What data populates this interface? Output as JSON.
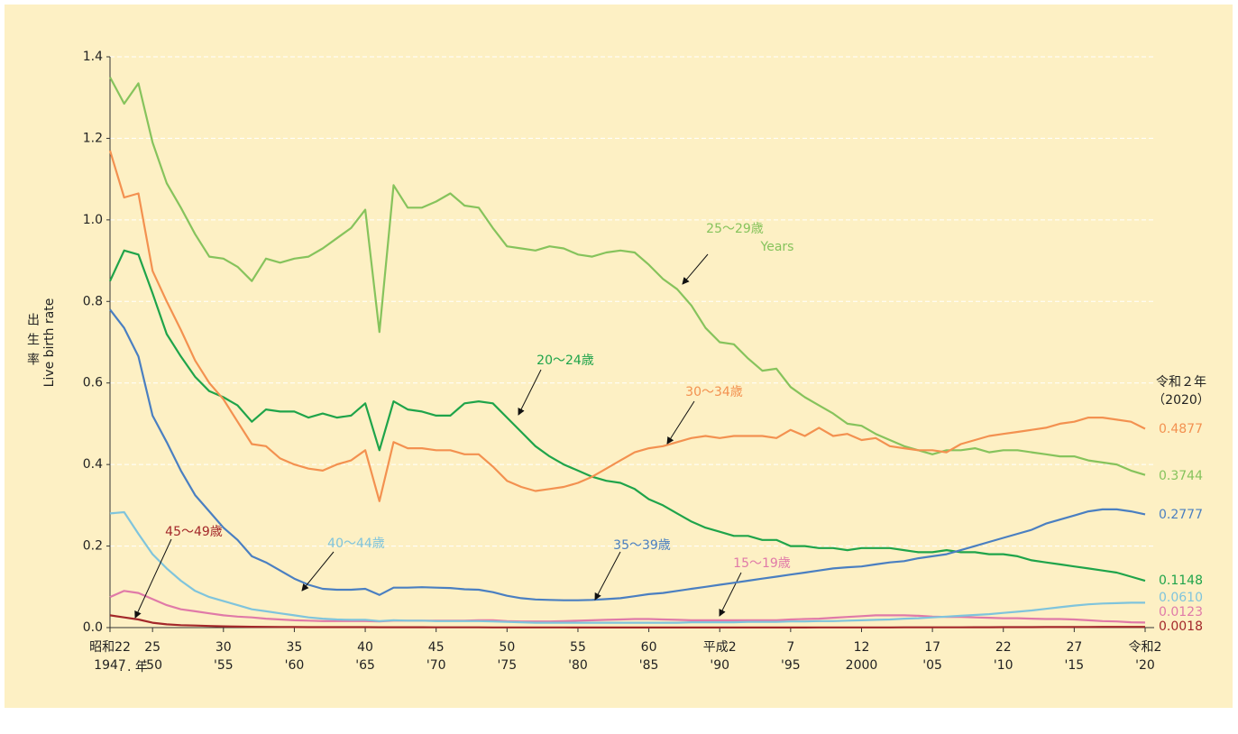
{
  "chart_data": {
    "type": "line",
    "y_label": "出生率",
    "y_label_en": "Live birth rate",
    "x_unit": ". . 年",
    "end_header": [
      "令和２年",
      "（2020）"
    ],
    "xlim": [
      1947,
      2020
    ],
    "ylim": [
      0,
      1.4
    ],
    "yticks": [
      {
        "value": 0,
        "label": "0.0"
      },
      0.2,
      0.4,
      0.6,
      0.8,
      {
        "value": 1,
        "label": "1.0"
      },
      1.2,
      1.4
    ],
    "xticks": [
      {
        "value": 1947,
        "label": "昭和22"
      },
      {
        "value": 1950,
        "label": "25"
      },
      {
        "value": 1955,
        "label": "30"
      },
      {
        "value": 1960,
        "label": "35"
      },
      {
        "value": 1965,
        "label": "40"
      },
      {
        "value": 1970,
        "label": "45"
      },
      {
        "value": 1975,
        "label": "50"
      },
      {
        "value": 1980,
        "label": "55"
      },
      {
        "value": 1985,
        "label": "60"
      },
      {
        "value": 1990,
        "label": "平成2"
      },
      {
        "value": 1995,
        "label": "7"
      },
      {
        "value": 2000,
        "label": "12"
      },
      {
        "value": 2005,
        "label": "17"
      },
      {
        "value": 2010,
        "label": "22"
      },
      {
        "value": 2015,
        "label": "27"
      },
      {
        "value": 2020,
        "label": "令和2"
      }
    ],
    "xticks2": [
      1947,
      {
        "value": 1950,
        "label": "'50"
      },
      {
        "value": 1955,
        "label": "'55"
      },
      {
        "value": 1960,
        "label": "'60"
      },
      {
        "value": 1965,
        "label": "'65"
      },
      {
        "value": 1970,
        "label": "'70"
      },
      {
        "value": 1975,
        "label": "'75"
      },
      {
        "value": 1980,
        "label": "'80"
      },
      {
        "value": 1985,
        "label": "'85"
      },
      {
        "value": 1990,
        "label": "'90"
      },
      {
        "value": 1995,
        "label": "'95"
      },
      2000,
      {
        "value": 2005,
        "label": "'05"
      },
      {
        "value": 2010,
        "label": "'10"
      },
      {
        "value": 2015,
        "label": "'15"
      },
      {
        "value": 2020,
        "label": "'20"
      }
    ],
    "grid": true,
    "x": [
      1947,
      1948,
      1949,
      1950,
      1951,
      1952,
      1953,
      1954,
      1955,
      1956,
      1957,
      1958,
      1959,
      1960,
      1961,
      1962,
      1963,
      1964,
      1965,
      1966,
      1967,
      1968,
      1969,
      1970,
      1971,
      1972,
      1973,
      1974,
      1975,
      1976,
      1977,
      1978,
      1979,
      1980,
      1981,
      1982,
      1983,
      1984,
      1985,
      1986,
      1987,
      1988,
      1989,
      1990,
      1991,
      1992,
      1993,
      1994,
      1995,
      1996,
      1997,
      1998,
      1999,
      2000,
      2001,
      2002,
      2003,
      2004,
      2005,
      2006,
      2007,
      2008,
      2009,
      2010,
      2011,
      2012,
      2013,
      2014,
      2015,
      2016,
      2017,
      2018,
      2019,
      2020
    ],
    "series": [
      {
        "name": "15〜19歳",
        "color": "#e07aa8",
        "end_label": "0.0123",
        "values": [
          0.075,
          0.09,
          0.085,
          0.07,
          0.055,
          0.045,
          0.04,
          0.035,
          0.03,
          0.027,
          0.025,
          0.022,
          0.02,
          0.018,
          0.017,
          0.016,
          0.016,
          0.016,
          0.016,
          0.015,
          0.017,
          0.017,
          0.017,
          0.017,
          0.017,
          0.017,
          0.018,
          0.018,
          0.016,
          0.015,
          0.015,
          0.015,
          0.016,
          0.017,
          0.018,
          0.019,
          0.02,
          0.021,
          0.021,
          0.02,
          0.019,
          0.018,
          0.018,
          0.018,
          0.018,
          0.018,
          0.018,
          0.018,
          0.02,
          0.021,
          0.022,
          0.024,
          0.026,
          0.028,
          0.03,
          0.03,
          0.03,
          0.029,
          0.027,
          0.026,
          0.026,
          0.025,
          0.024,
          0.023,
          0.023,
          0.022,
          0.021,
          0.021,
          0.02,
          0.018,
          0.016,
          0.015,
          0.013,
          0.0123
        ]
      },
      {
        "name": "20〜24歳",
        "color": "#1fa44a",
        "end_label": "0.1148",
        "values": [
          0.85,
          0.925,
          0.915,
          0.82,
          0.72,
          0.665,
          0.615,
          0.58,
          0.565,
          0.545,
          0.505,
          0.535,
          0.53,
          0.53,
          0.515,
          0.525,
          0.515,
          0.52,
          0.55,
          0.435,
          0.555,
          0.535,
          0.53,
          0.52,
          0.52,
          0.55,
          0.555,
          0.55,
          0.515,
          0.48,
          0.445,
          0.42,
          0.4,
          0.385,
          0.37,
          0.36,
          0.355,
          0.34,
          0.315,
          0.3,
          0.28,
          0.26,
          0.245,
          0.235,
          0.225,
          0.225,
          0.215,
          0.215,
          0.2,
          0.2,
          0.195,
          0.195,
          0.19,
          0.195,
          0.195,
          0.195,
          0.19,
          0.185,
          0.185,
          0.19,
          0.185,
          0.185,
          0.18,
          0.18,
          0.175,
          0.165,
          0.16,
          0.155,
          0.15,
          0.145,
          0.14,
          0.135,
          0.125,
          0.1148
        ]
      },
      {
        "name": "25〜29歳",
        "annotation": "Years",
        "color": "#86c35c",
        "end_label": "0.3744",
        "values": [
          1.35,
          1.285,
          1.335,
          1.19,
          1.09,
          1.03,
          0.965,
          0.91,
          0.905,
          0.885,
          0.85,
          0.905,
          0.895,
          0.905,
          0.91,
          0.93,
          0.955,
          0.98,
          1.025,
          0.725,
          1.085,
          1.03,
          1.03,
          1.045,
          1.065,
          1.035,
          1.03,
          0.98,
          0.935,
          0.93,
          0.925,
          0.935,
          0.93,
          0.915,
          0.91,
          0.92,
          0.925,
          0.92,
          0.89,
          0.855,
          0.83,
          0.79,
          0.735,
          0.7,
          0.695,
          0.66,
          0.63,
          0.635,
          0.59,
          0.565,
          0.545,
          0.525,
          0.5,
          0.495,
          0.475,
          0.46,
          0.445,
          0.435,
          0.425,
          0.435,
          0.435,
          0.44,
          0.43,
          0.435,
          0.435,
          0.43,
          0.425,
          0.42,
          0.42,
          0.41,
          0.405,
          0.4,
          0.385,
          0.3744
        ]
      },
      {
        "name": "30〜34歳",
        "color": "#f39150",
        "end_label": "0.4877",
        "values": [
          1.17,
          1.055,
          1.065,
          0.875,
          0.8,
          0.73,
          0.655,
          0.6,
          0.56,
          0.505,
          0.45,
          0.445,
          0.415,
          0.4,
          0.39,
          0.385,
          0.4,
          0.41,
          0.435,
          0.31,
          0.455,
          0.44,
          0.44,
          0.435,
          0.435,
          0.425,
          0.425,
          0.395,
          0.36,
          0.345,
          0.335,
          0.34,
          0.345,
          0.355,
          0.37,
          0.39,
          0.41,
          0.43,
          0.44,
          0.445,
          0.455,
          0.465,
          0.47,
          0.465,
          0.47,
          0.47,
          0.47,
          0.465,
          0.485,
          0.47,
          0.49,
          0.47,
          0.475,
          0.46,
          0.465,
          0.445,
          0.44,
          0.435,
          0.435,
          0.43,
          0.45,
          0.46,
          0.47,
          0.475,
          0.48,
          0.485,
          0.49,
          0.5,
          0.505,
          0.515,
          0.515,
          0.51,
          0.505,
          0.4877
        ]
      },
      {
        "name": "35〜39歳",
        "color": "#4a7fc1",
        "end_label": "0.2777",
        "values": [
          0.78,
          0.735,
          0.665,
          0.52,
          0.455,
          0.385,
          0.325,
          0.285,
          0.245,
          0.215,
          0.175,
          0.16,
          0.14,
          0.12,
          0.105,
          0.095,
          0.093,
          0.093,
          0.095,
          0.08,
          0.098,
          0.098,
          0.099,
          0.098,
          0.097,
          0.094,
          0.093,
          0.087,
          0.078,
          0.072,
          0.069,
          0.068,
          0.067,
          0.067,
          0.068,
          0.07,
          0.072,
          0.077,
          0.082,
          0.085,
          0.09,
          0.095,
          0.1,
          0.105,
          0.11,
          0.115,
          0.12,
          0.125,
          0.13,
          0.135,
          0.14,
          0.145,
          0.148,
          0.15,
          0.155,
          0.16,
          0.163,
          0.17,
          0.175,
          0.18,
          0.19,
          0.2,
          0.21,
          0.22,
          0.23,
          0.24,
          0.255,
          0.265,
          0.275,
          0.285,
          0.29,
          0.29,
          0.285,
          0.2777
        ]
      },
      {
        "name": "40〜44歳",
        "color": "#7fc4dc",
        "end_label": "0.0610",
        "values": [
          0.28,
          0.283,
          0.23,
          0.18,
          0.145,
          0.115,
          0.09,
          0.075,
          0.065,
          0.055,
          0.045,
          0.04,
          0.035,
          0.03,
          0.025,
          0.022,
          0.02,
          0.019,
          0.019,
          0.016,
          0.018,
          0.017,
          0.017,
          0.016,
          0.016,
          0.016,
          0.016,
          0.015,
          0.014,
          0.013,
          0.012,
          0.012,
          0.012,
          0.012,
          0.012,
          0.012,
          0.012,
          0.012,
          0.012,
          0.012,
          0.012,
          0.013,
          0.013,
          0.013,
          0.013,
          0.014,
          0.014,
          0.014,
          0.015,
          0.015,
          0.016,
          0.016,
          0.017,
          0.018,
          0.019,
          0.02,
          0.022,
          0.023,
          0.025,
          0.027,
          0.029,
          0.031,
          0.033,
          0.036,
          0.039,
          0.042,
          0.046,
          0.05,
          0.054,
          0.057,
          0.059,
          0.06,
          0.061,
          0.061
        ]
      },
      {
        "name": "45〜49歳",
        "color": "#a3282a",
        "end_label": "0.0018",
        "values": [
          0.03,
          0.025,
          0.02,
          0.012,
          0.008,
          0.006,
          0.005,
          0.004,
          0.003,
          0.0025,
          0.002,
          0.0018,
          0.0015,
          0.0013,
          0.0012,
          0.001,
          0.001,
          0.001,
          0.001,
          0.0008,
          0.0009,
          0.0008,
          0.0008,
          0.0007,
          0.0007,
          0.0006,
          0.0006,
          0.0005,
          0.0005,
          0.0004,
          0.0004,
          0.0004,
          0.0004,
          0.0003,
          0.0003,
          0.0003,
          0.0003,
          0.0003,
          0.0003,
          0.0003,
          0.0003,
          0.0003,
          0.0003,
          0.0003,
          0.0003,
          0.0003,
          0.0003,
          0.0003,
          0.0003,
          0.0003,
          0.0004,
          0.0004,
          0.0004,
          0.0005,
          0.0005,
          0.0005,
          0.0006,
          0.0006,
          0.0006,
          0.0007,
          0.0007,
          0.0008,
          0.0009,
          0.001,
          0.0011,
          0.0012,
          0.0013,
          0.0014,
          0.0015,
          0.0016,
          0.0017,
          0.0017,
          0.0017,
          0.0018
        ]
      }
    ]
  }
}
